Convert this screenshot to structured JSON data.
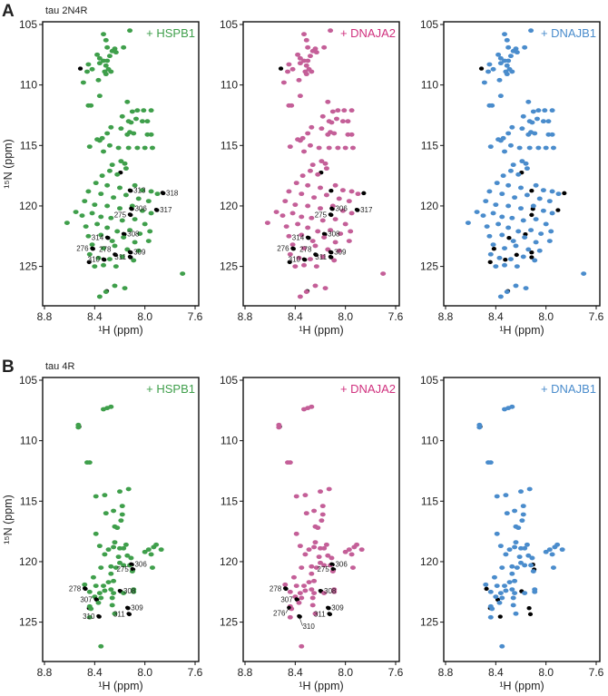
{
  "chart_data": [
    {
      "type": "scatter",
      "panel_label": "A",
      "title": "tau 2N4R",
      "xlabel": "¹H (ppm)",
      "ylabel": "¹⁵N (ppm)",
      "xlim": [
        8.8,
        7.6
      ],
      "ylim": [
        128.5,
        104.7
      ],
      "xticks": [
        8.8,
        8.4,
        8.0,
        7.6
      ],
      "yticks": [
        105,
        110,
        115,
        120,
        125
      ],
      "grid": false,
      "peaks": [
        [
          8.33,
          105.8
        ],
        [
          8.12,
          105.5
        ],
        [
          8.31,
          106.3
        ],
        [
          8.3,
          106.9
        ],
        [
          8.26,
          107.2
        ],
        [
          8.24,
          107.0
        ],
        [
          8.23,
          107.3
        ],
        [
          8.17,
          106.9
        ],
        [
          8.38,
          107.5
        ],
        [
          8.36,
          107.8
        ],
        [
          8.33,
          108.0
        ],
        [
          8.3,
          108.0
        ],
        [
          8.28,
          107.6
        ],
        [
          8.45,
          108.3
        ],
        [
          8.42,
          108.7
        ],
        [
          8.36,
          108.2
        ],
        [
          8.31,
          108.4
        ],
        [
          8.27,
          108.9
        ],
        [
          8.29,
          108.7
        ],
        [
          8.32,
          108.9
        ],
        [
          8.46,
          108.9
        ],
        [
          8.49,
          109.8
        ],
        [
          8.37,
          109.6
        ],
        [
          8.31,
          109.1
        ],
        [
          8.36,
          110.9
        ],
        [
          8.43,
          111.7
        ],
        [
          8.45,
          111.7
        ],
        [
          8.14,
          111.4
        ],
        [
          8.06,
          112.1
        ],
        [
          8.01,
          112.1
        ],
        [
          8.1,
          112.2
        ],
        [
          7.95,
          112.1
        ],
        [
          8.07,
          112.8
        ],
        [
          8.18,
          112.6
        ],
        [
          8.11,
          113.1
        ],
        [
          8.13,
          113.0
        ],
        [
          8.02,
          113.0
        ],
        [
          7.98,
          113.0
        ],
        [
          8.27,
          113.5
        ],
        [
          8.19,
          113.6
        ],
        [
          8.3,
          114.0
        ],
        [
          8.12,
          113.9
        ],
        [
          8.09,
          114.0
        ],
        [
          8.14,
          114.1
        ],
        [
          7.98,
          114.1
        ],
        [
          7.95,
          114.1
        ],
        [
          8.38,
          114.5
        ],
        [
          8.34,
          114.4
        ],
        [
          8.36,
          114.6
        ],
        [
          8.44,
          115.1
        ],
        [
          8.28,
          115.0
        ],
        [
          8.21,
          115.2
        ],
        [
          8.13,
          115.2
        ],
        [
          8.06,
          115.2
        ],
        [
          8.0,
          115.2
        ],
        [
          7.94,
          115.2
        ],
        [
          8.33,
          115.5
        ],
        [
          8.19,
          116.3
        ],
        [
          8.16,
          116.5
        ],
        [
          8.26,
          116.6
        ],
        [
          8.15,
          116.9
        ],
        [
          8.28,
          117.1
        ],
        [
          8.22,
          117.4
        ],
        [
          8.34,
          117.5
        ],
        [
          8.39,
          118.1
        ],
        [
          8.3,
          118.3
        ],
        [
          8.2,
          118.5
        ],
        [
          8.08,
          118.3
        ],
        [
          8.02,
          118.7
        ],
        [
          7.95,
          118.8
        ],
        [
          7.9,
          119.0
        ],
        [
          8.45,
          118.8
        ],
        [
          8.35,
          119.0
        ],
        [
          8.25,
          119.3
        ],
        [
          8.15,
          119.1
        ],
        [
          8.05,
          119.4
        ],
        [
          7.97,
          119.6
        ],
        [
          8.48,
          119.6
        ],
        [
          8.4,
          119.9
        ],
        [
          8.3,
          120.0
        ],
        [
          8.2,
          120.2
        ],
        [
          8.1,
          120.0
        ],
        [
          8.02,
          120.4
        ],
        [
          7.95,
          120.6
        ],
        [
          8.55,
          120.5
        ],
        [
          8.5,
          120.8
        ],
        [
          8.42,
          120.6
        ],
        [
          8.35,
          120.9
        ],
        [
          8.27,
          121.0
        ],
        [
          8.18,
          121.2
        ],
        [
          8.08,
          121.1
        ],
        [
          8.0,
          121.5
        ],
        [
          8.62,
          121.4
        ],
        [
          8.47,
          121.7
        ],
        [
          8.38,
          121.5
        ],
        [
          8.3,
          121.8
        ],
        [
          8.22,
          122.1
        ],
        [
          8.12,
          122.0
        ],
        [
          8.04,
          122.3
        ],
        [
          7.96,
          122.1
        ],
        [
          8.45,
          122.5
        ],
        [
          8.35,
          122.4
        ],
        [
          8.26,
          122.9
        ],
        [
          8.17,
          122.6
        ],
        [
          8.08,
          123.0
        ],
        [
          7.97,
          122.9
        ],
        [
          8.42,
          123.2
        ],
        [
          8.33,
          123.5
        ],
        [
          8.24,
          123.3
        ],
        [
          8.14,
          123.6
        ],
        [
          8.05,
          123.7
        ],
        [
          8.44,
          124.0
        ],
        [
          8.37,
          124.3
        ],
        [
          8.28,
          124.4
        ],
        [
          8.18,
          124.2
        ],
        [
          8.09,
          124.5
        ],
        [
          8.4,
          125.0
        ],
        [
          8.33,
          124.9
        ],
        [
          8.23,
          125.0
        ],
        [
          7.7,
          125.6
        ],
        [
          8.36,
          127.5
        ],
        [
          8.24,
          126.6
        ],
        [
          8.16,
          126.8
        ],
        [
          8.31,
          127.1
        ]
      ],
      "reference_peaks": [
        [
          8.52,
          108.6
        ],
        [
          8.45,
          124.6
        ],
        [
          8.31,
          127.0
        ],
        [
          8.2,
          117.2
        ],
        [
          8.12,
          118.7
        ],
        [
          7.86,
          118.9
        ],
        [
          8.11,
          120.2
        ],
        [
          8.12,
          120.7
        ],
        [
          7.91,
          120.3
        ],
        [
          8.17,
          122.3
        ],
        [
          8.3,
          122.6
        ],
        [
          8.42,
          123.5
        ],
        [
          8.12,
          123.8
        ],
        [
          8.12,
          124.2
        ],
        [
          8.33,
          124.4
        ],
        [
          8.24,
          124.0
        ]
      ],
      "subplots": [
        {
          "name": "+ HSPB1",
          "color": "#3f9f4b",
          "text_color": "#3f9f4b",
          "labels": [
            {
              "text": "313",
              "h": 8.12,
              "n": 118.7
            },
            {
              "text": "318",
              "h": 7.86,
              "n": 118.9
            },
            {
              "text": "306",
              "h": 8.11,
              "n": 120.2
            },
            {
              "text": "275",
              "h": 8.12,
              "n": 120.7
            },
            {
              "text": "317",
              "h": 7.91,
              "n": 120.3
            },
            {
              "text": "308",
              "h": 8.17,
              "n": 122.3
            },
            {
              "text": "314",
              "h": 8.3,
              "n": 122.6
            },
            {
              "text": "276",
              "h": 8.42,
              "n": 123.5
            },
            {
              "text": "309",
              "h": 8.12,
              "n": 123.8
            },
            {
              "text": "311",
              "h": 8.12,
              "n": 124.2
            },
            {
              "text": "310",
              "h": 8.33,
              "n": 124.4
            },
            {
              "text": "278",
              "h": 8.24,
              "n": 124.0
            }
          ]
        },
        {
          "name": "+ DNAJA2",
          "color": "#c45f98",
          "text_color": "#d0307e",
          "labels": [
            {
              "text": "306",
              "h": 8.11,
              "n": 120.2
            },
            {
              "text": "275",
              "h": 8.12,
              "n": 120.7
            },
            {
              "text": "317",
              "h": 7.91,
              "n": 120.3
            },
            {
              "text": "308",
              "h": 8.17,
              "n": 122.3
            },
            {
              "text": "314",
              "h": 8.3,
              "n": 122.6
            },
            {
              "text": "276",
              "h": 8.42,
              "n": 123.5
            },
            {
              "text": "309",
              "h": 8.12,
              "n": 123.8
            },
            {
              "text": "311",
              "h": 8.12,
              "n": 124.2
            },
            {
              "text": "310",
              "h": 8.33,
              "n": 124.4
            },
            {
              "text": "278",
              "h": 8.24,
              "n": 124.0
            }
          ]
        },
        {
          "name": "+ DNAJB1",
          "color": "#4a8ccc",
          "text_color": "#4a8ccc",
          "labels": []
        }
      ]
    },
    {
      "type": "scatter",
      "panel_label": "B",
      "title": "tau 4R",
      "xlabel": "¹H (ppm)",
      "ylabel": "¹⁵N (ppm)",
      "xlim": [
        8.8,
        7.6
      ],
      "ylim": [
        128.3,
        104.7
      ],
      "xticks": [
        8.8,
        8.4,
        8.0,
        7.6
      ],
      "yticks": [
        105,
        110,
        115,
        120,
        125
      ],
      "grid": false,
      "peaks": [
        [
          8.3,
          107.3
        ],
        [
          8.27,
          107.2
        ],
        [
          8.33,
          107.4
        ],
        [
          8.53,
          108.7
        ],
        [
          8.53,
          108.9
        ],
        [
          8.46,
          111.8
        ],
        [
          8.44,
          111.8
        ],
        [
          8.39,
          114.6
        ],
        [
          8.32,
          114.5
        ],
        [
          8.2,
          114.2
        ],
        [
          8.13,
          114.0
        ],
        [
          8.18,
          115.4
        ],
        [
          8.31,
          116.0
        ],
        [
          8.25,
          115.8
        ],
        [
          8.18,
          116.1
        ],
        [
          8.19,
          116.6
        ],
        [
          8.24,
          117.1
        ],
        [
          8.22,
          117.2
        ],
        [
          8.39,
          117.7
        ],
        [
          8.36,
          118.7
        ],
        [
          8.24,
          118.4
        ],
        [
          8.25,
          118.8
        ],
        [
          8.2,
          118.9
        ],
        [
          8.15,
          118.6
        ],
        [
          8.17,
          118.9
        ],
        [
          8.29,
          119.0
        ],
        [
          8.32,
          119.4
        ],
        [
          8.21,
          119.6
        ],
        [
          8.14,
          119.5
        ],
        [
          8.11,
          119.7
        ],
        [
          8.0,
          119.2
        ],
        [
          7.97,
          119.0
        ],
        [
          7.93,
          118.8
        ],
        [
          7.91,
          118.6
        ],
        [
          7.87,
          119.0
        ],
        [
          7.95,
          119.4
        ],
        [
          7.94,
          120.5
        ],
        [
          8.17,
          120.3
        ],
        [
          8.12,
          120.3
        ],
        [
          8.2,
          120.1
        ],
        [
          8.23,
          120.5
        ],
        [
          8.27,
          120.4
        ],
        [
          8.1,
          120.8
        ],
        [
          8.35,
          120.5
        ],
        [
          8.27,
          121.0
        ],
        [
          8.25,
          121.6
        ],
        [
          8.29,
          121.7
        ],
        [
          8.41,
          121.3
        ],
        [
          8.48,
          121.9
        ],
        [
          8.39,
          122.0
        ],
        [
          8.33,
          122.0
        ],
        [
          8.32,
          122.4
        ],
        [
          8.27,
          122.3
        ],
        [
          8.25,
          122.6
        ],
        [
          8.17,
          122.6
        ],
        [
          8.09,
          122.3
        ],
        [
          8.09,
          122.5
        ],
        [
          8.36,
          122.6
        ],
        [
          8.44,
          122.5
        ],
        [
          8.4,
          122.9
        ],
        [
          8.35,
          123.0
        ],
        [
          8.26,
          123.0
        ],
        [
          8.44,
          123.7
        ],
        [
          8.43,
          123.9
        ],
        [
          8.37,
          123.4
        ],
        [
          8.26,
          123.6
        ],
        [
          8.24,
          124.3
        ],
        [
          8.44,
          124.6
        ],
        [
          8.35,
          127.0
        ]
      ],
      "reference_peaks": [
        [
          8.11,
          120.2
        ],
        [
          8.1,
          120.6
        ],
        [
          8.48,
          122.2
        ],
        [
          8.2,
          122.4
        ],
        [
          8.39,
          123.1
        ],
        [
          8.14,
          123.8
        ],
        [
          8.13,
          124.3
        ],
        [
          8.37,
          124.5
        ],
        [
          8.45,
          123.8
        ],
        [
          8.53,
          108.8
        ]
      ],
      "subplots": [
        {
          "name": "+ HSPB1",
          "color": "#3f9f4b",
          "text_color": "#3f9f4b",
          "labels": [
            {
              "text": "306",
              "h": 8.11,
              "n": 120.2
            },
            {
              "text": "275",
              "h": 8.1,
              "n": 120.6
            },
            {
              "text": "278",
              "h": 8.48,
              "n": 122.2
            },
            {
              "text": "308",
              "h": 8.2,
              "n": 122.4
            },
            {
              "text": "307",
              "h": 8.39,
              "n": 123.1
            },
            {
              "text": "309",
              "h": 8.14,
              "n": 123.8
            },
            {
              "text": "311",
              "h": 8.13,
              "n": 124.3
            },
            {
              "text": "310",
              "h": 8.37,
              "n": 124.5
            }
          ]
        },
        {
          "name": "+ DNAJA2",
          "color": "#c45f98",
          "text_color": "#d0307e",
          "labels": [
            {
              "text": "306",
              "h": 8.11,
              "n": 120.2
            },
            {
              "text": "275",
              "h": 8.1,
              "n": 120.6
            },
            {
              "text": "278",
              "h": 8.48,
              "n": 122.2
            },
            {
              "text": "308",
              "h": 8.2,
              "n": 122.4
            },
            {
              "text": "307",
              "h": 8.39,
              "n": 123.1
            },
            {
              "text": "276",
              "h": 8.45,
              "n": 123.8
            },
            {
              "text": "309",
              "h": 8.14,
              "n": 123.8
            },
            {
              "text": "311",
              "h": 8.13,
              "n": 124.3
            },
            {
              "text": "310",
              "h": 8.37,
              "n": 124.5
            }
          ]
        },
        {
          "name": "+ DNAJB1",
          "color": "#4a8ccc",
          "text_color": "#4a8ccc",
          "labels": []
        }
      ]
    }
  ]
}
